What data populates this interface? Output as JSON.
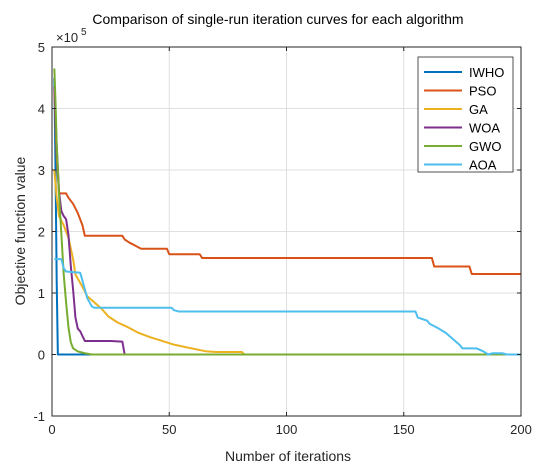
{
  "chart_data": {
    "type": "line",
    "title": "Comparison of single-run iteration curves for each algorithm",
    "xlabel": "Number of iterations",
    "ylabel": "Objective function value",
    "y_exponent_label": "×10",
    "y_exponent_power": "5",
    "xlim": [
      0,
      200
    ],
    "ylim": [
      -1,
      5
    ],
    "y_scale_factor": 100000,
    "x_ticks": [
      0,
      50,
      100,
      150,
      200
    ],
    "x_tick_labels": [
      "0",
      "50",
      "100",
      "150",
      "200"
    ],
    "y_ticks": [
      -1,
      0,
      1,
      2,
      3,
      4,
      5
    ],
    "y_tick_labels": [
      "-1",
      "0",
      "1",
      "2",
      "3",
      "4",
      "5"
    ],
    "grid": true,
    "legend_position": "top-right",
    "series": [
      {
        "name": "IWHO",
        "color": "#0072BD",
        "points": [
          [
            1,
            4.5
          ],
          [
            1.5,
            3.0
          ],
          [
            2,
            1.2
          ],
          [
            2.5,
            0.0
          ],
          [
            200,
            0.0
          ]
        ]
      },
      {
        "name": "PSO",
        "color": "#D95319",
        "points": [
          [
            1,
            4.3
          ],
          [
            2,
            3.2
          ],
          [
            3,
            2.62
          ],
          [
            6,
            2.62
          ],
          [
            7,
            2.55
          ],
          [
            9,
            2.45
          ],
          [
            11,
            2.3
          ],
          [
            13,
            2.1
          ],
          [
            14,
            1.93
          ],
          [
            30,
            1.93
          ],
          [
            31,
            1.87
          ],
          [
            33,
            1.82
          ],
          [
            36,
            1.76
          ],
          [
            38,
            1.72
          ],
          [
            49,
            1.72
          ],
          [
            50,
            1.63
          ],
          [
            63,
            1.63
          ],
          [
            64,
            1.57
          ],
          [
            162,
            1.57
          ],
          [
            163,
            1.43
          ],
          [
            178,
            1.43
          ],
          [
            179,
            1.31
          ],
          [
            200,
            1.31
          ]
        ]
      },
      {
        "name": "GA",
        "color": "#EDB120",
        "points": [
          [
            1,
            3.0
          ],
          [
            2,
            2.55
          ],
          [
            3,
            2.25
          ],
          [
            5,
            2.1
          ],
          [
            7,
            1.9
          ],
          [
            9,
            1.55
          ],
          [
            10,
            1.3
          ],
          [
            13,
            1.1
          ],
          [
            15,
            0.95
          ],
          [
            18,
            0.85
          ],
          [
            21,
            0.75
          ],
          [
            24,
            0.62
          ],
          [
            28,
            0.52
          ],
          [
            32,
            0.45
          ],
          [
            37,
            0.35
          ],
          [
            42,
            0.28
          ],
          [
            47,
            0.22
          ],
          [
            52,
            0.16
          ],
          [
            57,
            0.12
          ],
          [
            62,
            0.08
          ],
          [
            66,
            0.05
          ],
          [
            70,
            0.04
          ],
          [
            81,
            0.04
          ],
          [
            82,
            0.0
          ],
          [
            200,
            0.0
          ]
        ]
      },
      {
        "name": "WOA",
        "color": "#7E2F8E",
        "points": [
          [
            1,
            4.35
          ],
          [
            2,
            3.4
          ],
          [
            3,
            2.65
          ],
          [
            4,
            2.33
          ],
          [
            5,
            2.25
          ],
          [
            6,
            2.2
          ],
          [
            7,
            1.95
          ],
          [
            8,
            1.45
          ],
          [
            9,
            1.05
          ],
          [
            10,
            0.6
          ],
          [
            11,
            0.42
          ],
          [
            12,
            0.38
          ],
          [
            13,
            0.3
          ],
          [
            14,
            0.22
          ],
          [
            25,
            0.22
          ],
          [
            30,
            0.21
          ],
          [
            31,
            0.0
          ]
        ]
      },
      {
        "name": "GWO",
        "color": "#77AC30",
        "points": [
          [
            1,
            4.65
          ],
          [
            1.5,
            4.1
          ],
          [
            2,
            3.4
          ],
          [
            3,
            2.6
          ],
          [
            4,
            1.95
          ],
          [
            5,
            1.3
          ],
          [
            6,
            0.85
          ],
          [
            7,
            0.45
          ],
          [
            8,
            0.2
          ],
          [
            9,
            0.1
          ],
          [
            11,
            0.05
          ],
          [
            14,
            0.02
          ],
          [
            17,
            0.0
          ],
          [
            200,
            0.0
          ]
        ]
      },
      {
        "name": "AOA",
        "color": "#4DBEEE",
        "points": [
          [
            1,
            1.55
          ],
          [
            4,
            1.55
          ],
          [
            5,
            1.4
          ],
          [
            6,
            1.35
          ],
          [
            12,
            1.33
          ],
          [
            13,
            1.2
          ],
          [
            15,
            0.92
          ],
          [
            17,
            0.78
          ],
          [
            18,
            0.76
          ],
          [
            51,
            0.76
          ],
          [
            52,
            0.72
          ],
          [
            54,
            0.7
          ],
          [
            155,
            0.7
          ],
          [
            156,
            0.6
          ],
          [
            160,
            0.55
          ],
          [
            161,
            0.5
          ],
          [
            165,
            0.42
          ],
          [
            168,
            0.35
          ],
          [
            171,
            0.25
          ],
          [
            174,
            0.15
          ],
          [
            175,
            0.1
          ],
          [
            181,
            0.1
          ],
          [
            184,
            0.05
          ],
          [
            186,
            0.0
          ],
          [
            188,
            0.02
          ],
          [
            192,
            0.02
          ],
          [
            194,
            0.0
          ],
          [
            200,
            0.0
          ]
        ]
      }
    ]
  }
}
